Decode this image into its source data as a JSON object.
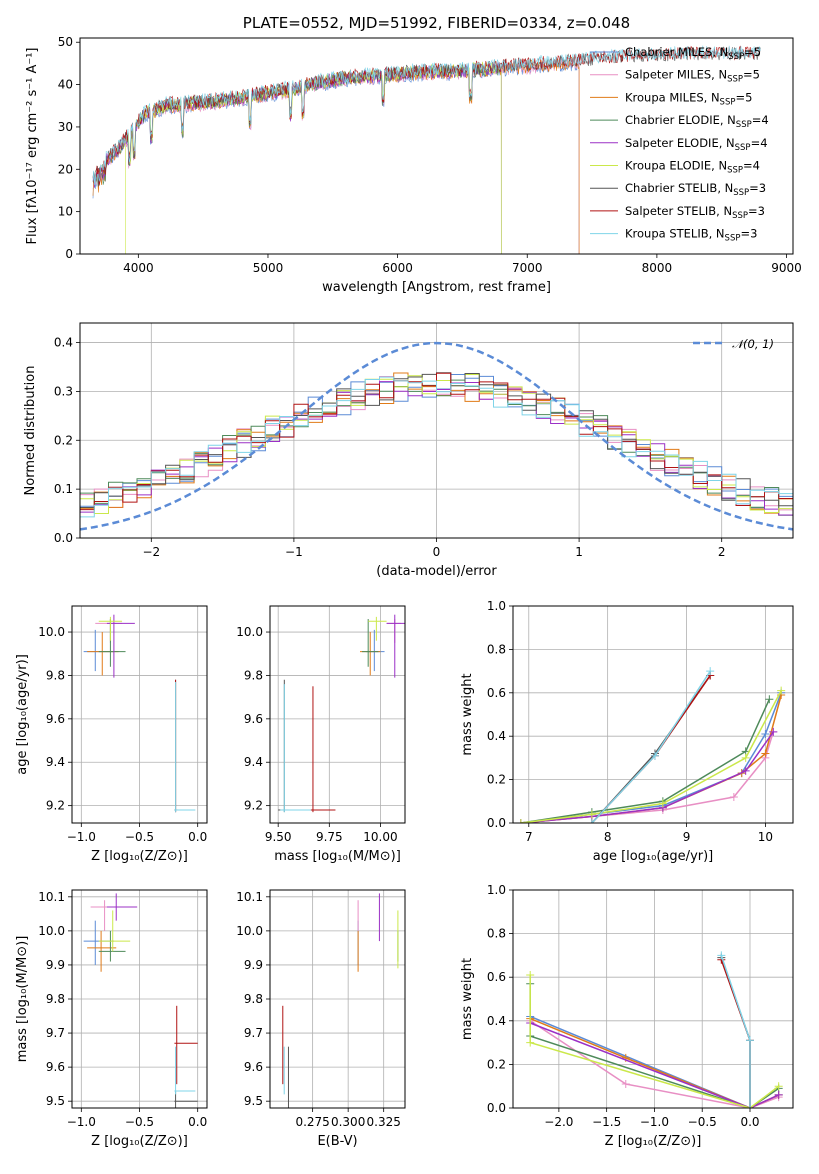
{
  "colors": {
    "Chabrier MILES": "#5b8bd6",
    "Salpeter MILES": "#e88fc4",
    "Kroupa MILES": "#e07b18",
    "Chabrier ELODIE": "#4e8a5a",
    "Salpeter ELODIE": "#9b30c6",
    "Kroupa ELODIE": "#cbe84a",
    "Chabrier STELIB": "#555555",
    "Salpeter STELIB": "#b01313",
    "Kroupa STELIB": "#7fd4e8",
    "normal": "#5b8bd6"
  },
  "chart_data": [
    {
      "id": "spectrum",
      "type": "line",
      "title": "PLATE=0552, MJD=51992, FIBERID=0334, z=0.048",
      "xlabel": "wavelength [Angstrom, rest frame]",
      "ylabel": "Flux [fλ10⁻¹⁷ erg cm⁻² s⁻¹ A⁻¹]",
      "xlim": [
        3550,
        9050
      ],
      "ylim": [
        0,
        51
      ],
      "xticks": [
        4000,
        5000,
        6000,
        7000,
        8000,
        9000
      ],
      "yticks": [
        0,
        10,
        20,
        30,
        40,
        50
      ],
      "legend": [
        {
          "model": "Chabrier MILES",
          "label": "Chabrier MILES, N",
          "sub": "SSP",
          "tail": "=5"
        },
        {
          "model": "Salpeter MILES",
          "label": "Salpeter MILES, N",
          "sub": "SSP",
          "tail": "=5"
        },
        {
          "model": "Kroupa MILES",
          "label": "Kroupa MILES, N",
          "sub": "SSP",
          "tail": "=5"
        },
        {
          "model": "Chabrier ELODIE",
          "label": "Chabrier ELODIE, N",
          "sub": "SSP",
          "tail": "=4"
        },
        {
          "model": "Salpeter ELODIE",
          "label": "Salpeter ELODIE, N",
          "sub": "SSP",
          "tail": "=4"
        },
        {
          "model": "Kroupa ELODIE",
          "label": "Kroupa ELODIE, N",
          "sub": "SSP",
          "tail": "=4"
        },
        {
          "model": "Chabrier STELIB",
          "label": "Chabrier STELIB, N",
          "sub": "SSP",
          "tail": "=3"
        },
        {
          "model": "Salpeter STELIB",
          "label": "Salpeter STELIB, N",
          "sub": "SSP",
          "tail": "=3"
        },
        {
          "model": "Kroupa STELIB",
          "label": "Kroupa STELIB, N",
          "sub": "SSP",
          "tail": "=3"
        }
      ],
      "continuum": [
        [
          3650,
          19
        ],
        [
          3750,
          22
        ],
        [
          3850,
          25
        ],
        [
          3950,
          29
        ],
        [
          4050,
          33
        ],
        [
          4200,
          35
        ],
        [
          4400,
          35.5
        ],
        [
          4600,
          36
        ],
        [
          4800,
          37
        ],
        [
          5000,
          38
        ],
        [
          5200,
          39
        ],
        [
          5400,
          40.5
        ],
        [
          5600,
          41.5
        ],
        [
          5800,
          42
        ],
        [
          6000,
          42.5
        ],
        [
          6200,
          43
        ],
        [
          6400,
          43
        ],
        [
          6600,
          43.5
        ],
        [
          6800,
          44
        ],
        [
          7000,
          44.5
        ],
        [
          7200,
          45
        ],
        [
          7400,
          45.5
        ],
        [
          7600,
          46
        ],
        [
          7800,
          46.5
        ],
        [
          8000,
          46.5
        ],
        [
          8200,
          47
        ],
        [
          8400,
          47
        ],
        [
          8600,
          47
        ],
        [
          8800,
          47
        ]
      ],
      "model_ranges": {
        "Chabrier MILES": [
          3650,
          7400
        ],
        "Salpeter MILES": [
          3650,
          7400
        ],
        "Kroupa MILES": [
          3650,
          7400
        ],
        "Chabrier ELODIE": [
          3650,
          6800
        ],
        "Salpeter ELODIE": [
          3650,
          6800
        ],
        "Kroupa ELODIE": [
          3900,
          6800
        ],
        "Chabrier STELIB": [
          3650,
          8800
        ],
        "Salpeter STELIB": [
          3650,
          8800
        ],
        "Kroupa STELIB": [
          3650,
          8800
        ]
      }
    },
    {
      "id": "residuals",
      "type": "line",
      "xlabel": "(data-model)/error",
      "ylabel": "Normed distribution",
      "xlim": [
        -2.5,
        2.5
      ],
      "ylim": [
        0,
        0.44
      ],
      "xticks": [
        -2,
        -1,
        0,
        1,
        2
      ],
      "yticks": [
        0.0,
        0.1,
        0.2,
        0.3,
        0.4
      ],
      "legend": "𝒩(0, 1)",
      "bin_width": 0.1
    },
    {
      "id": "age_vs_Z",
      "type": "scatter",
      "xlabel": "Z [log₁₀(Z/Z⊙)]",
      "ylabel": "age  [log₁₀(age/yr)]",
      "xlim": [
        -1.08,
        0.08
      ],
      "ylim": [
        9.12,
        10.12
      ],
      "xticks": [
        -1.0,
        -0.5,
        0.0
      ],
      "yticks": [
        9.2,
        9.4,
        9.6,
        9.8,
        10.0
      ],
      "points": [
        {
          "model": "Chabrier MILES",
          "x": -0.88,
          "xe": [
            -0.98,
            -0.72
          ],
          "y": 9.91,
          "ye": [
            9.82,
            10.01
          ]
        },
        {
          "model": "Salpeter MILES",
          "x": -0.75,
          "xe": [
            -0.88,
            -0.65
          ],
          "y": 10.04,
          "ye": [
            9.95,
            10.06
          ]
        },
        {
          "model": "Kroupa MILES",
          "x": -0.82,
          "xe": [
            -0.95,
            -0.68
          ],
          "y": 9.91,
          "ye": [
            9.8,
            10.0
          ]
        },
        {
          "model": "Chabrier ELODIE",
          "x": -0.75,
          "xe": [
            -0.85,
            -0.62
          ],
          "y": 9.91,
          "ye": [
            9.84,
            10.06
          ]
        },
        {
          "model": "Salpeter ELODIE",
          "x": -0.72,
          "xe": [
            -0.78,
            -0.54
          ],
          "y": 10.04,
          "ye": [
            9.79,
            10.08
          ]
        },
        {
          "model": "Kroupa ELODIE",
          "x": -0.75,
          "xe": [
            -0.85,
            -0.65
          ],
          "y": 10.05,
          "ye": [
            9.96,
            10.07
          ]
        },
        {
          "model": "Chabrier STELIB",
          "x": -0.19,
          "xe": [
            -0.2,
            -0.17
          ],
          "y": 9.18,
          "ye": [
            9.17,
            9.78
          ]
        },
        {
          "model": "Salpeter STELIB",
          "x": -0.19,
          "xe": [
            -0.2,
            -0.18
          ],
          "y": 9.18,
          "ye": [
            9.17,
            9.78
          ]
        },
        {
          "model": "Kroupa STELIB",
          "x": -0.19,
          "xe": [
            -0.2,
            -0.02
          ],
          "y": 9.18,
          "ye": [
            9.17,
            9.77
          ]
        }
      ]
    },
    {
      "id": "age_vs_mass",
      "type": "scatter",
      "xlabel": "mass [log₁₀(M/M⊙)]",
      "ylabel": "",
      "xlim": [
        9.46,
        10.12
      ],
      "ylim": [
        9.12,
        10.12
      ],
      "xticks": [
        9.5,
        9.75,
        10.0
      ],
      "yticks": [
        9.2,
        9.4,
        9.6,
        9.8,
        10.0
      ],
      "points": [
        {
          "model": "Chabrier MILES",
          "x": 9.97,
          "xe": [
            9.93,
            10.02
          ],
          "y": 9.91,
          "ye": [
            9.82,
            10.01
          ]
        },
        {
          "model": "Salpeter MILES",
          "x": 10.07,
          "xe": [
            10.03,
            10.1
          ],
          "y": 10.04,
          "ye": [
            9.95,
            10.06
          ]
        },
        {
          "model": "Kroupa MILES",
          "x": 9.95,
          "xe": [
            9.9,
            10.0
          ],
          "y": 9.91,
          "ye": [
            9.8,
            10.0
          ]
        },
        {
          "model": "Chabrier ELODIE",
          "x": 9.94,
          "xe": [
            9.91,
            9.99
          ],
          "y": 9.91,
          "ye": [
            9.84,
            10.06
          ]
        },
        {
          "model": "Salpeter ELODIE",
          "x": 10.07,
          "xe": [
            10.03,
            10.12
          ],
          "y": 10.04,
          "ye": [
            9.79,
            10.08
          ]
        },
        {
          "model": "Kroupa ELODIE",
          "x": 9.98,
          "xe": [
            9.94,
            10.03
          ],
          "y": 10.05,
          "ye": [
            9.96,
            10.07
          ]
        },
        {
          "model": "Chabrier STELIB",
          "x": 9.53,
          "xe": [
            9.5,
            9.55
          ],
          "y": 9.18,
          "ye": [
            9.17,
            9.78
          ]
        },
        {
          "model": "Salpeter STELIB",
          "x": 9.67,
          "xe": [
            9.55,
            9.78
          ],
          "y": 9.18,
          "ye": [
            9.17,
            9.75
          ]
        },
        {
          "model": "Kroupa STELIB",
          "x": 9.53,
          "xe": [
            9.51,
            9.66
          ],
          "y": 9.18,
          "ye": [
            9.17,
            9.76
          ]
        }
      ]
    },
    {
      "id": "massweight_vs_age",
      "type": "line",
      "xlabel": "age  [log₁₀(age/yr)]",
      "ylabel": "mass weight",
      "xlim": [
        6.8,
        10.35
      ],
      "ylim": [
        0,
        1.0
      ],
      "xticks": [
        7,
        8,
        9,
        10
      ],
      "yticks": [
        0.0,
        0.2,
        0.4,
        0.6,
        0.8,
        1.0
      ],
      "series": [
        {
          "model": "Chabrier MILES",
          "x": [
            6.9,
            7.8,
            8.7,
            9.7,
            10.0,
            10.2
          ],
          "y": [
            0.0,
            0.04,
            0.08,
            0.23,
            0.41,
            0.6
          ]
        },
        {
          "model": "Salpeter MILES",
          "x": [
            6.9,
            7.8,
            8.7,
            9.6,
            10.0,
            10.1
          ],
          "y": [
            0.0,
            0.03,
            0.06,
            0.12,
            0.3,
            0.42
          ]
        },
        {
          "model": "Kroupa MILES",
          "x": [
            6.9,
            7.8,
            8.7,
            9.7,
            10.0,
            10.2
          ],
          "y": [
            0.0,
            0.03,
            0.07,
            0.23,
            0.32,
            0.59
          ]
        },
        {
          "model": "Chabrier ELODIE",
          "x": [
            6.9,
            7.8,
            8.7,
            9.75,
            10.05
          ],
          "y": [
            0.0,
            0.05,
            0.1,
            0.33,
            0.57
          ]
        },
        {
          "model": "Salpeter ELODIE",
          "x": [
            6.9,
            7.8,
            8.7,
            9.75,
            10.1
          ],
          "y": [
            0.0,
            0.03,
            0.07,
            0.24,
            0.42
          ]
        },
        {
          "model": "Kroupa ELODIE",
          "x": [
            6.9,
            7.8,
            8.7,
            9.75,
            10.2
          ],
          "y": [
            0.0,
            0.04,
            0.09,
            0.3,
            0.61
          ]
        },
        {
          "model": "Chabrier STELIB",
          "x": [
            7.8,
            8.6,
            9.3
          ],
          "y": [
            0.0,
            0.32,
            0.68
          ]
        },
        {
          "model": "Salpeter STELIB",
          "x": [
            7.8,
            8.6,
            9.3
          ],
          "y": [
            0.0,
            0.31,
            0.68
          ]
        },
        {
          "model": "Kroupa STELIB",
          "x": [
            7.8,
            8.6,
            9.3
          ],
          "y": [
            0.0,
            0.31,
            0.7
          ]
        }
      ]
    },
    {
      "id": "mass_vs_Z",
      "type": "scatter",
      "xlabel": "Z [log₁₀(Z/Z⊙)]",
      "ylabel": "mass [log₁₀(M/M⊙)]",
      "xlim": [
        -1.08,
        0.08
      ],
      "ylim": [
        9.48,
        10.12
      ],
      "xticks": [
        -1.0,
        -0.5,
        0.0
      ],
      "yticks": [
        9.5,
        9.6,
        9.7,
        9.8,
        9.9,
        10.0,
        10.1
      ],
      "points": [
        {
          "model": "Chabrier MILES",
          "x": -0.88,
          "xe": [
            -0.98,
            -0.72
          ],
          "y": 9.97,
          "ye": [
            9.9,
            10.03
          ]
        },
        {
          "model": "Salpeter MILES",
          "x": -0.8,
          "xe": [
            -0.92,
            -0.62
          ],
          "y": 10.07,
          "ye": [
            10.0,
            10.09
          ]
        },
        {
          "model": "Kroupa MILES",
          "x": -0.83,
          "xe": [
            -0.95,
            -0.7
          ],
          "y": 9.95,
          "ye": [
            9.88,
            10.0
          ]
        },
        {
          "model": "Chabrier ELODIE",
          "x": -0.75,
          "xe": [
            -0.85,
            -0.62
          ],
          "y": 9.94,
          "ye": [
            9.91,
            10.0
          ]
        },
        {
          "model": "Salpeter ELODIE",
          "x": -0.7,
          "xe": [
            -0.78,
            -0.52
          ],
          "y": 10.07,
          "ye": [
            10.03,
            10.11
          ]
        },
        {
          "model": "Kroupa ELODIE",
          "x": -0.73,
          "xe": [
            -0.85,
            -0.58
          ],
          "y": 9.97,
          "ye": [
            9.94,
            10.06
          ]
        },
        {
          "model": "Chabrier STELIB",
          "x": -0.19,
          "xe": [
            -0.2,
            0.0
          ],
          "y": 9.5,
          "ye": [
            9.48,
            9.53
          ]
        },
        {
          "model": "Salpeter STELIB",
          "x": -0.18,
          "xe": [
            -0.2,
            0.0
          ],
          "y": 9.67,
          "ye": [
            9.55,
            9.78
          ]
        },
        {
          "model": "Kroupa STELIB",
          "x": -0.19,
          "xe": [
            -0.2,
            -0.02
          ],
          "y": 9.53,
          "ye": [
            9.52,
            9.66
          ]
        }
      ]
    },
    {
      "id": "mass_vs_ebv",
      "type": "scatter",
      "xlabel": "E(B-V)",
      "ylabel": "",
      "xlim": [
        0.245,
        0.34
      ],
      "ylim": [
        9.48,
        10.12
      ],
      "xticks": [
        0.275,
        0.3,
        0.325
      ],
      "yticks": [
        9.5,
        9.6,
        9.7,
        9.8,
        9.9,
        10.0,
        10.1
      ],
      "points": [
        {
          "model": "Chabrier MILES",
          "x": 0.307,
          "y": 9.97,
          "ye": [
            9.9,
            10.03
          ]
        },
        {
          "model": "Salpeter MILES",
          "x": 0.307,
          "y": 10.07,
          "ye": [
            10.0,
            10.09
          ]
        },
        {
          "model": "Kroupa MILES",
          "x": 0.307,
          "y": 9.95,
          "ye": [
            9.88,
            10.0
          ]
        },
        {
          "model": "Chabrier ELODIE",
          "x": 0.335,
          "y": 9.94,
          "ye": [
            9.91,
            10.0
          ]
        },
        {
          "model": "Salpeter ELODIE",
          "x": 0.322,
          "y": 10.07,
          "ye": [
            9.97,
            10.11
          ]
        },
        {
          "model": "Kroupa ELODIE",
          "x": 0.335,
          "y": 9.97,
          "ye": [
            9.89,
            10.06
          ]
        },
        {
          "model": "Chabrier STELIB",
          "x": 0.258,
          "y": 9.5,
          "ye": [
            9.48,
            9.66
          ]
        },
        {
          "model": "Salpeter STELIB",
          "x": 0.254,
          "y": 9.67,
          "ye": [
            9.55,
            9.78
          ]
        },
        {
          "model": "Kroupa STELIB",
          "x": 0.255,
          "y": 9.53,
          "ye": [
            9.52,
            9.66
          ]
        }
      ]
    },
    {
      "id": "massweight_vs_Z",
      "type": "line",
      "xlabel": "Z [log₁₀(Z/Z⊙)]",
      "ylabel": "mass weight",
      "xlim": [
        -2.48,
        0.45
      ],
      "ylim": [
        0,
        1.0
      ],
      "xticks": [
        -2.0,
        -1.5,
        -1.0,
        -0.5,
        0.0
      ],
      "yticks": [
        0.0,
        0.2,
        0.4,
        0.6,
        0.8,
        1.0
      ],
      "series": [
        {
          "model": "Chabrier MILES",
          "x": [
            -2.3,
            0.0,
            0.3
          ],
          "y": [
            0.42,
            0.0,
            0.06
          ]
        },
        {
          "model": "Salpeter MILES",
          "x": [
            -2.3,
            -1.3,
            0.0,
            0.3
          ],
          "y": [
            0.4,
            0.11,
            0.0,
            0.05
          ]
        },
        {
          "model": "Kroupa MILES",
          "x": [
            -2.3,
            -1.3,
            0.0,
            0.3
          ],
          "y": [
            0.41,
            0.23,
            0.0,
            0.06
          ]
        },
        {
          "model": "Chabrier ELODIE",
          "x": [
            -2.3,
            -2.3,
            0.0,
            0.3
          ],
          "y": [
            0.57,
            0.33,
            0.0,
            0.09
          ]
        },
        {
          "model": "Salpeter ELODIE",
          "x": [
            -2.3,
            0.0,
            0.3
          ],
          "y": [
            0.39,
            0.0,
            0.06
          ]
        },
        {
          "model": "Kroupa ELODIE",
          "x": [
            -2.3,
            -2.3,
            0.0,
            0.3
          ],
          "y": [
            0.61,
            0.3,
            0.0,
            0.1
          ]
        },
        {
          "model": "Chabrier STELIB",
          "x": [
            -0.3,
            0.0,
            0.0
          ],
          "y": [
            0.69,
            0.31,
            0.0
          ]
        },
        {
          "model": "Salpeter STELIB",
          "x": [
            -0.3,
            0.0,
            0.0
          ],
          "y": [
            0.68,
            0.31,
            0.0
          ]
        },
        {
          "model": "Kroupa STELIB",
          "x": [
            -0.3,
            0.0,
            0.0
          ],
          "y": [
            0.7,
            0.31,
            0.0
          ]
        }
      ]
    }
  ]
}
